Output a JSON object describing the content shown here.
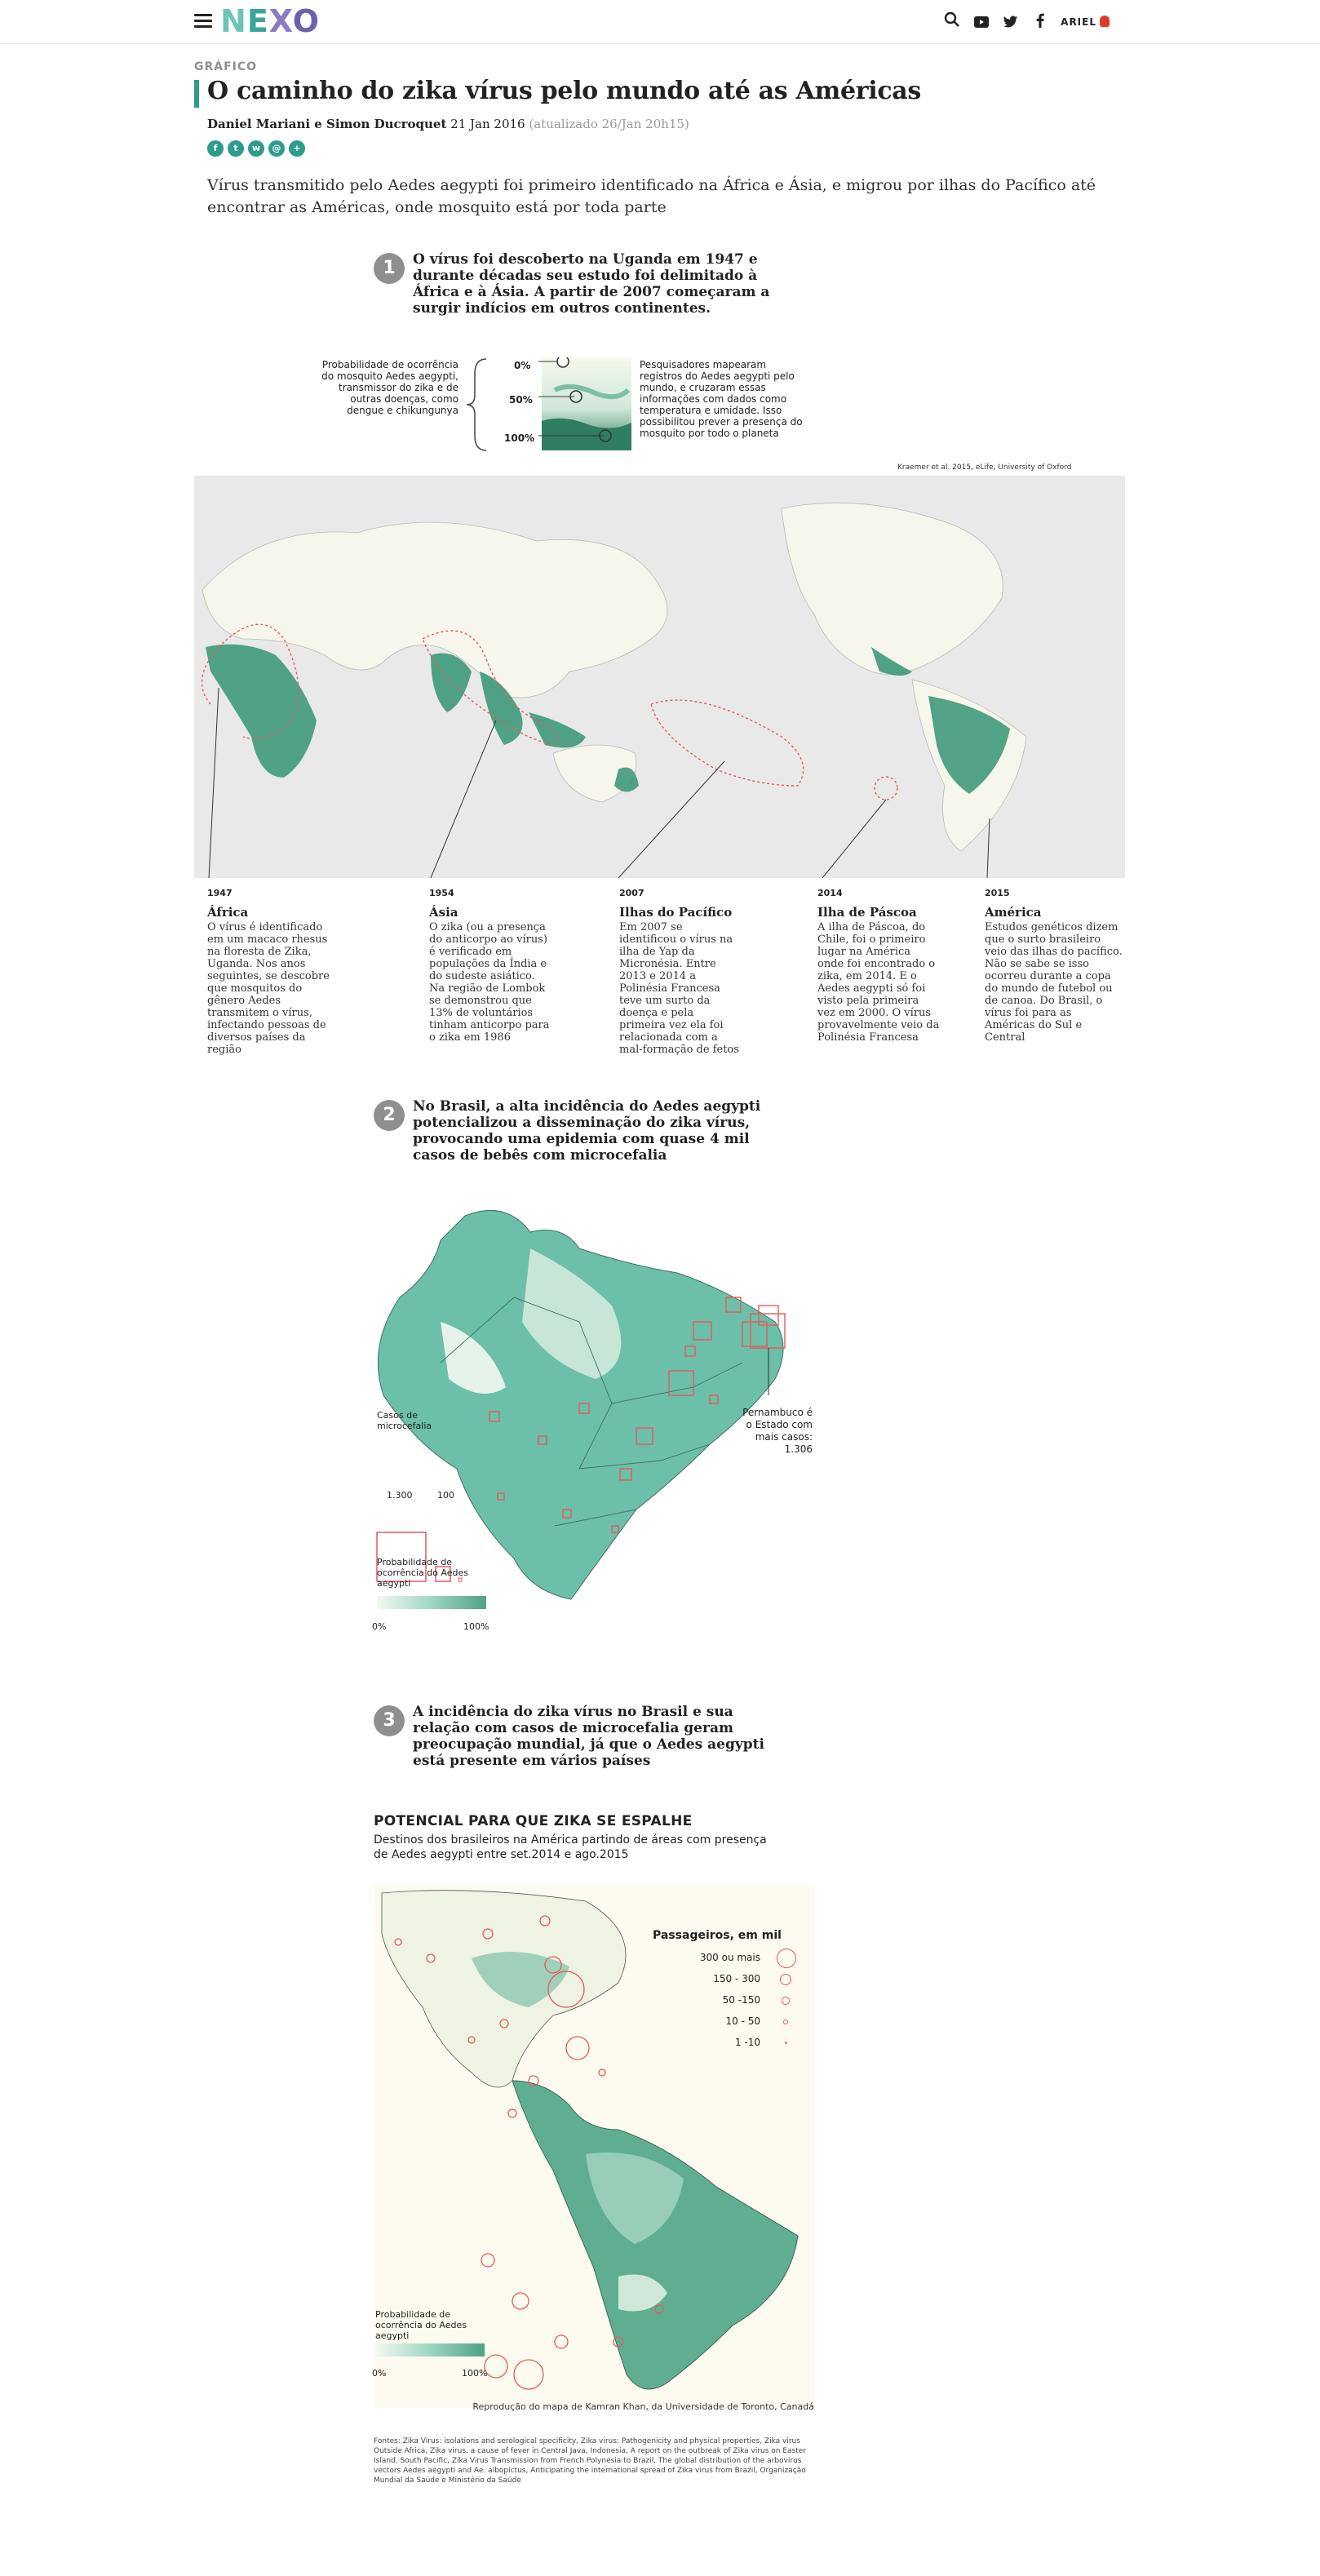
{
  "header": {
    "logo": [
      "N",
      "E",
      "X",
      "O"
    ],
    "user_label": "ARIEL",
    "icons": [
      "menu-icon",
      "search-icon",
      "youtube-icon",
      "twitter-icon",
      "facebook-icon",
      "user-icon"
    ]
  },
  "article": {
    "kicker": "GRÁFICO",
    "title": "O caminho do zika vírus pelo mundo até as Américas",
    "authors": "Daniel Mariani e Simon Ducroquet",
    "date": "21 Jan 2016",
    "updated": "(atualizado 26/Jan 20h15)",
    "share": [
      "f",
      "t",
      "w",
      "@",
      "+"
    ],
    "lede": "Vírus transmitido pelo Aedes aegypti foi primeiro identificado na África e Ásia, e migrou por ilhas do Pacífico até encontrar as Américas, onde mosquito está por toda parte"
  },
  "section1": {
    "num": "1",
    "text": "O vírus foi descoberto na Uganda em 1947 e durante décadas seu estudo foi delimitado à África e à Ásia. A partir de 2007 começaram a surgir indícios em outros continentes.",
    "prob_label": "Probabilidade de ocorrência do mosquito Aedes aegypti, transmissor do zika e de outras doenças, como dengue e chikungunya",
    "pct": [
      "0%",
      "50%",
      "100%"
    ],
    "note": "Pesquisadores mapearam registros do Aedes aegypti pelo mundo, e cruzaram essas informações com dados como temperatura e umidade. Isso possibilitou prever a presença do mosquito por todo o planeta",
    "source": "Kraemer et al. 2015, eLife, University of Oxford",
    "timeline": [
      {
        "year": "1947",
        "title": "África",
        "body": "O vírus é identificado em um macaco rhesus na floresta de Zika, Uganda. Nos anos seguintes, se descobre que mosquitos do gênero Aedes transmitem o vírus, infectando pessoas de diversos países da região"
      },
      {
        "year": "1954",
        "title": "Ásia",
        "body": "O zika (ou a presença do anticorpo ao vírus) é verificado em populações da Índia e do sudeste asiático. Na região de Lombok se demonstrou que 13% de voluntários tinham anticorpo para o zika em 1986"
      },
      {
        "year": "2007",
        "title": "Ilhas do Pacífico",
        "body": "Em 2007 se identificou o vírus na ilha de Yap da Micronésia. Entre 2013 e 2014 a Polinésia Francesa teve um surto da doença e pela primeira vez ela foi relacionada com a mal-formação de fetos"
      },
      {
        "year": "2014",
        "title": "Ilha de Páscoa",
        "body": "A ilha de Páscoa, do Chile, foi o primeiro lugar na América onde foi encontrado o zika, em 2014. E o Aedes aegypti só foi visto pela primeira vez em 2000. O vírus provavelmente veio da Polinésia Francesa"
      },
      {
        "year": "2015",
        "title": "América",
        "body": "Estudos genéticos dizem que o surto brasileiro veio das ilhas do pacífico. Não se sabe se isso ocorreu durante a copa do mundo de futebol ou de canoa. Do Brasil, o vírus foi para as Américas do Sul e Central"
      }
    ]
  },
  "section2": {
    "num": "2",
    "text": "No Brasil, a alta incidência do Aedes aegypti potencializou a disseminação do zika vírus, provocando uma epidemia com quase 4 mil casos de bebês com microcefalia",
    "cases_label": "Casos de microcefalia",
    "cases_values": [
      "1.300",
      "100"
    ],
    "pernambuco": "Pernambuco é o Estado com mais casos: 1.306",
    "prob_label": "Probabilidade de ocorrência do Aedes aegypti",
    "scale": [
      "0%",
      "100%"
    ]
  },
  "section3": {
    "num": "3",
    "text": "A incidência do zika vírus no Brasil e sua relação com casos de microcefalia geram preocupação mundial, já que o Aedes aegypti está presente em vários países",
    "chart_title": "POTENCIAL PARA QUE ZIKA SE ESPALHE",
    "chart_sub": "Destinos dos brasileiros na América partindo de áreas com presença de Aedes aegypti entre set.2014 e ago.2015",
    "legend_title": "Passageiros, em mil",
    "legend_rows": [
      "300 ou mais",
      "150 - 300",
      "50 -150",
      "10 - 50",
      "1 -10"
    ],
    "prob_label": "Probabilidade de ocorrência do Aedes aegypti",
    "scale": [
      "0%",
      "100%"
    ],
    "reproduction": "Reprodução do mapa de Kamran Khan, da Universidade de Toronto, Canadá",
    "sources": "Fontes: Zika Virus: isolations and serological specificity, Zika virus: Pathogenicity and physical properties, Zika virus Outside Africa, Zika virus, a cause of fever in Central Java, Indonesia, A report on the outbreak of Zika virus on Easter Island, South Pacific, Zika Virus Transmission from French Polynesia to Brazil, The global distribution of the arbovirus vectors Aedes aegypti and Ae. albopictus, Anticipating the international spread of Zika virus from Brazil, Organização Mundial da Saúde e Ministério da Saúde"
  },
  "colors": {
    "accent": "#2d9c8c",
    "mosquito_high": "#2f7d62",
    "mosquito_low": "#f4f8f1",
    "route": "#e45a5a",
    "section_badge": "#8f8f8f"
  }
}
